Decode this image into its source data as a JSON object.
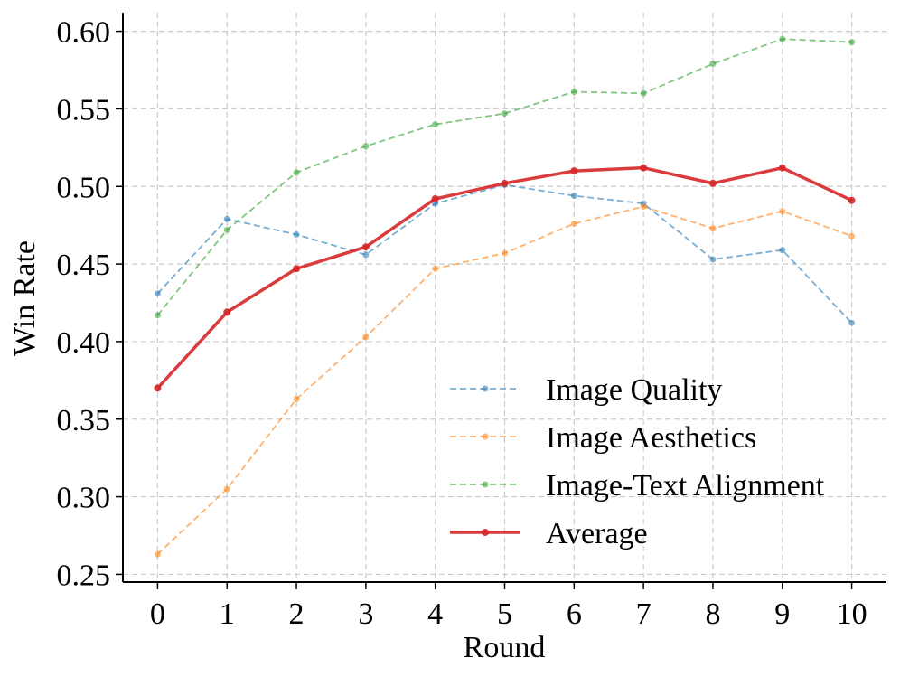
{
  "chart_data": {
    "type": "line",
    "title": "",
    "xlabel": "Round",
    "ylabel": "Win Rate",
    "x": [
      0,
      1,
      2,
      3,
      4,
      5,
      6,
      7,
      8,
      9,
      10
    ],
    "xticks": [
      0,
      1,
      2,
      3,
      4,
      5,
      6,
      7,
      8,
      9,
      10
    ],
    "yticks": [
      0.25,
      0.3,
      0.35,
      0.4,
      0.45,
      0.5,
      0.55,
      0.6
    ],
    "ytick_labels": [
      "0.25",
      "0.30",
      "0.35",
      "0.40",
      "0.45",
      "0.50",
      "0.55",
      "0.60"
    ],
    "xlim": [
      -0.5,
      10.5
    ],
    "ylim": [
      0.245,
      0.612
    ],
    "grid": true,
    "legend_position": "lower-right",
    "series": [
      {
        "name": "Image Quality",
        "style": "dashed",
        "color": "#1f77b4",
        "values": [
          0.431,
          0.479,
          0.469,
          0.456,
          0.489,
          0.501,
          0.494,
          0.489,
          0.453,
          0.459,
          0.412
        ]
      },
      {
        "name": "Image Aesthetics",
        "style": "dashed",
        "color": "#ff7f0e",
        "values": [
          0.263,
          0.305,
          0.363,
          0.403,
          0.447,
          0.457,
          0.476,
          0.487,
          0.473,
          0.484,
          0.468
        ]
      },
      {
        "name": "Image-Text Alignment",
        "style": "dashed",
        "color": "#2ca02c",
        "values": [
          0.417,
          0.472,
          0.509,
          0.526,
          0.54,
          0.547,
          0.561,
          0.56,
          0.579,
          0.595,
          0.593
        ]
      },
      {
        "name": "Average",
        "style": "solid",
        "color": "#d62728",
        "values": [
          0.37,
          0.419,
          0.447,
          0.461,
          0.492,
          0.502,
          0.51,
          0.512,
          0.502,
          0.512,
          0.491
        ]
      }
    ]
  }
}
